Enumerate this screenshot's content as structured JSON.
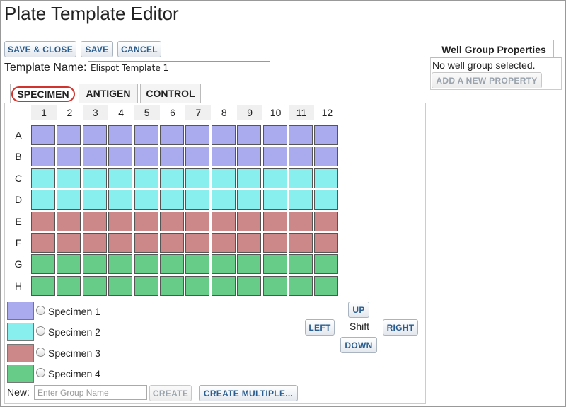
{
  "title": "Plate Template Editor",
  "toolbar": {
    "save_close": "SAVE & CLOSE",
    "save": "SAVE",
    "cancel": "CANCEL"
  },
  "template": {
    "name_label": "Template Name:",
    "name_value": "Elispot Template 1"
  },
  "tabs": [
    {
      "label": "SPECIMEN",
      "active": true
    },
    {
      "label": "ANTIGEN",
      "active": false
    },
    {
      "label": "CONTROL",
      "active": false
    }
  ],
  "plate": {
    "columns": [
      "1",
      "2",
      "3",
      "4",
      "5",
      "6",
      "7",
      "8",
      "9",
      "10",
      "11",
      "12"
    ],
    "rows": [
      "A",
      "B",
      "C",
      "D",
      "E",
      "F",
      "G",
      "H"
    ],
    "row_groups": [
      0,
      0,
      1,
      1,
      2,
      2,
      3,
      3
    ]
  },
  "groups": [
    {
      "name": "Specimen 1",
      "color": "#aaaaee"
    },
    {
      "name": "Specimen 2",
      "color": "#88eeee"
    },
    {
      "name": "Specimen 3",
      "color": "#cc8888"
    },
    {
      "name": "Specimen 4",
      "color": "#66cc88"
    }
  ],
  "shift": {
    "label": "Shift",
    "up": "UP",
    "down": "DOWN",
    "left": "LEFT",
    "right": "RIGHT"
  },
  "new_group": {
    "label": "New:",
    "placeholder": "Enter Group Name",
    "create": "CREATE",
    "create_multiple": "CREATE MULTIPLE..."
  },
  "properties": {
    "tab_label": "Well Group Properties",
    "empty_text": "No well group selected.",
    "add_button": "ADD A NEW PROPERTY"
  }
}
